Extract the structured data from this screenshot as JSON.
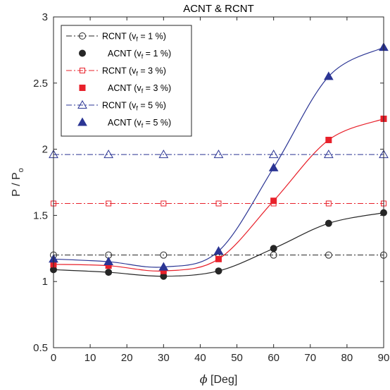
{
  "chart_data": {
    "type": "line",
    "title": "ACNT & RCNT",
    "xlabel_symbol": "ϕ",
    "xlabel_rest": " [Deg]",
    "ylabel_main": "P / P",
    "ylabel_sub": "o",
    "xlim": [
      0,
      90
    ],
    "ylim": [
      0.5,
      3
    ],
    "xticks": [
      0,
      10,
      20,
      30,
      40,
      50,
      60,
      70,
      80,
      90
    ],
    "yticks": [
      0.5,
      1,
      1.5,
      2,
      2.5,
      3
    ],
    "ytick_labels": [
      "0.5",
      "1",
      "1.5",
      "2",
      "2.5",
      "3"
    ],
    "grid": false,
    "legend_position": "top-left",
    "x": [
      0,
      15,
      30,
      45,
      60,
      75,
      90
    ],
    "series": [
      {
        "name_pre": "RCNT (v",
        "name_sub": "f",
        "name_post": " = 1 %)",
        "color": "#262626",
        "line": "dashdot",
        "marker": "circle-open",
        "values": [
          1.2,
          1.2,
          1.2,
          1.2,
          1.2,
          1.2,
          1.2
        ]
      },
      {
        "name_pre": "ACNT (v",
        "name_sub": "f",
        "name_post": " = 1 %)",
        "color": "#262626",
        "line": "solid-curve",
        "marker": "circle-filled",
        "values": [
          1.09,
          1.07,
          1.04,
          1.08,
          1.25,
          1.44,
          1.52
        ]
      },
      {
        "name_pre": "RCNT (v",
        "name_sub": "f",
        "name_post": " = 3 %)",
        "color": "#e8202a",
        "line": "dashdot",
        "marker": "square-open",
        "values": [
          1.59,
          1.59,
          1.59,
          1.59,
          1.59,
          1.59,
          1.59
        ]
      },
      {
        "name_pre": "ACNT (v",
        "name_sub": "f",
        "name_post": " = 3 %)",
        "color": "#e8202a",
        "line": "solid-curve",
        "marker": "square-filled",
        "values": [
          1.13,
          1.12,
          1.08,
          1.17,
          1.61,
          2.07,
          2.23
        ]
      },
      {
        "name_pre": "RCNT (v",
        "name_sub": "f",
        "name_post": " = 5 %)",
        "color": "#2b3594",
        "line": "dashdot",
        "marker": "triangle-open",
        "values": [
          1.96,
          1.96,
          1.96,
          1.96,
          1.96,
          1.96,
          1.96
        ]
      },
      {
        "name_pre": "ACNT (v",
        "name_sub": "f",
        "name_post": " = 5 %)",
        "color": "#2b3594",
        "line": "solid-curve",
        "marker": "triangle-filled",
        "values": [
          1.17,
          1.15,
          1.11,
          1.23,
          1.86,
          2.55,
          2.77
        ]
      }
    ]
  }
}
